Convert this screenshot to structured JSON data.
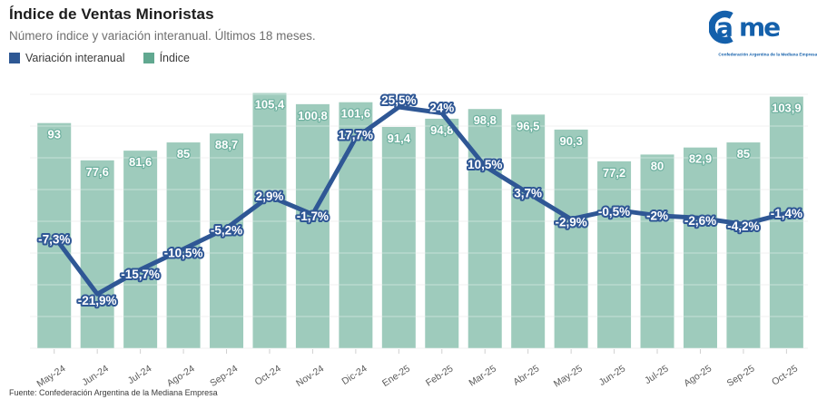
{
  "header": {
    "title": "Índice de Ventas Minoristas",
    "subtitle": "Número índice y variación interanual. Últimos 18 meses."
  },
  "legend": {
    "items": [
      {
        "label": "Variación interanual",
        "color": "#2e5894"
      },
      {
        "label": "Índice",
        "color": "#61a890"
      }
    ]
  },
  "logo": {
    "name": "Came",
    "tagline": "Confederación Argentina de la Mediana Empresa",
    "color": "#1460ab"
  },
  "footer": {
    "source": "Fuente: Confederación Argentina de la Mediana Empresa"
  },
  "chart_data": {
    "type": "bar",
    "title": "Índice de Ventas Minoristas",
    "subtitle": "Número índice y variación interanual. Últimos 18 meses.",
    "xlabel": "",
    "ylabel": "",
    "grid": "horizontal",
    "legend_position": "top-left",
    "decimal_separator": ",",
    "categories": [
      "May-24",
      "Jun-24",
      "Jul-24",
      "Ago-24",
      "Sep-24",
      "Oct-24",
      "Nov-24",
      "Dic-24",
      "Ene-25",
      "Feb-25",
      "Mar-25",
      "Abr-25",
      "May-25",
      "Jun-25",
      "Jul-25",
      "Ago-25",
      "Sep-25",
      "Oct-25"
    ],
    "series": [
      {
        "name": "Índice",
        "kind": "bar",
        "color": "#9ecbbc",
        "values": [
          93,
          77.6,
          81.6,
          85,
          88.7,
          105.4,
          100.8,
          101.6,
          91.4,
          94.8,
          98.8,
          96.5,
          90.3,
          77.2,
          80,
          82.9,
          85,
          103.9
        ]
      },
      {
        "name": "Variación interanual",
        "kind": "line",
        "color": "#2f5795",
        "unit": "%",
        "values": [
          -7.3,
          -21.9,
          -15.7,
          -10.5,
          -5.2,
          2.9,
          -1.7,
          17.7,
          25.5,
          24,
          10.5,
          3.7,
          -2.9,
          -0.5,
          -2,
          -2.6,
          -4.2,
          -1.4
        ]
      }
    ],
    "bar_axis": {
      "min": 0,
      "approx_max": 108
    },
    "line_axis": {
      "approx_min": -25,
      "approx_max": 30
    }
  }
}
